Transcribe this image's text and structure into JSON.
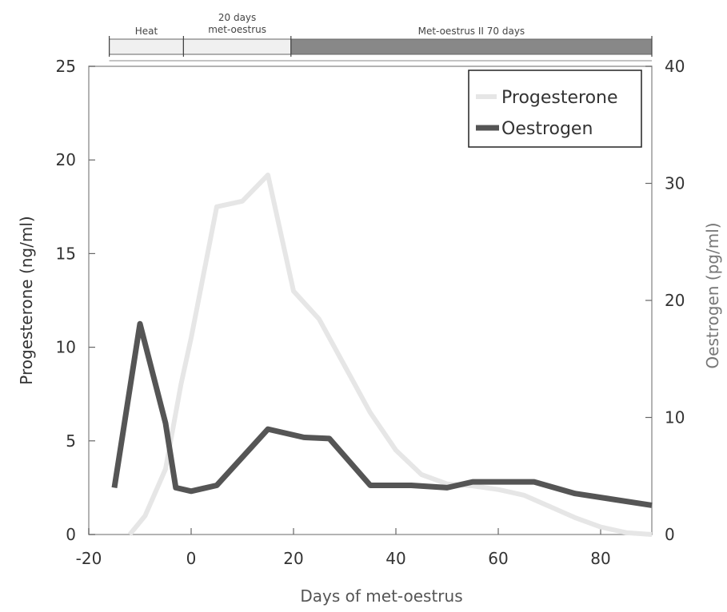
{
  "chart_data": {
    "type": "line",
    "xlabel": "Days of met-oestrus",
    "ylabel_left": "Progesterone (ng/ml)",
    "ylabel_right": "Oestrogen (pg/ml)",
    "xlim": [
      -20,
      90
    ],
    "ylim_left": [
      0,
      25
    ],
    "ylim_right": [
      0,
      40
    ],
    "x_ticks": [
      -20,
      0,
      20,
      40,
      60,
      80
    ],
    "y_ticks_left": [
      0,
      5,
      10,
      15,
      20,
      25
    ],
    "y_ticks_right": [
      0,
      10,
      20,
      30,
      40
    ],
    "grid": false,
    "legend_position": "top-right",
    "phases": [
      {
        "label_lines": [
          "Heat"
        ],
        "start": -16,
        "end": -1.5,
        "fill": "#f0f0f0"
      },
      {
        "label_lines": [
          "20 days",
          "met-oestrus"
        ],
        "start": -1.5,
        "end": 19.5,
        "fill": "#f0f0f0"
      },
      {
        "label_lines": [
          "Met-oestrus II 70 days"
        ],
        "start": 19.5,
        "end": 90,
        "fill": "#888888"
      }
    ],
    "series": [
      {
        "name": "Progesterone",
        "axis": "left",
        "color": "#e6e6e6",
        "x": [
          -12,
          -9,
          -5,
          -2,
          0,
          5,
          10,
          15,
          20,
          25,
          30,
          35,
          40,
          45,
          50,
          55,
          60,
          65,
          70,
          75,
          80,
          85,
          90
        ],
        "y": [
          0.0,
          1.0,
          3.5,
          8.0,
          10.5,
          17.5,
          17.8,
          19.2,
          13.0,
          11.5,
          9.0,
          6.5,
          4.5,
          3.2,
          2.7,
          2.6,
          2.4,
          2.1,
          1.5,
          0.9,
          0.4,
          0.1,
          0.0
        ]
      },
      {
        "name": "Oestrogen",
        "axis": "right",
        "color": "#555555",
        "x": [
          -15,
          -10,
          -5,
          -3,
          0,
          5,
          15,
          22,
          27,
          35,
          43,
          50,
          55,
          67,
          75,
          90
        ],
        "y": [
          4.0,
          18.0,
          9.5,
          4.0,
          3.7,
          4.2,
          9.0,
          8.3,
          8.2,
          4.2,
          4.2,
          4.0,
          4.5,
          4.5,
          3.5,
          2.5
        ]
      }
    ]
  }
}
